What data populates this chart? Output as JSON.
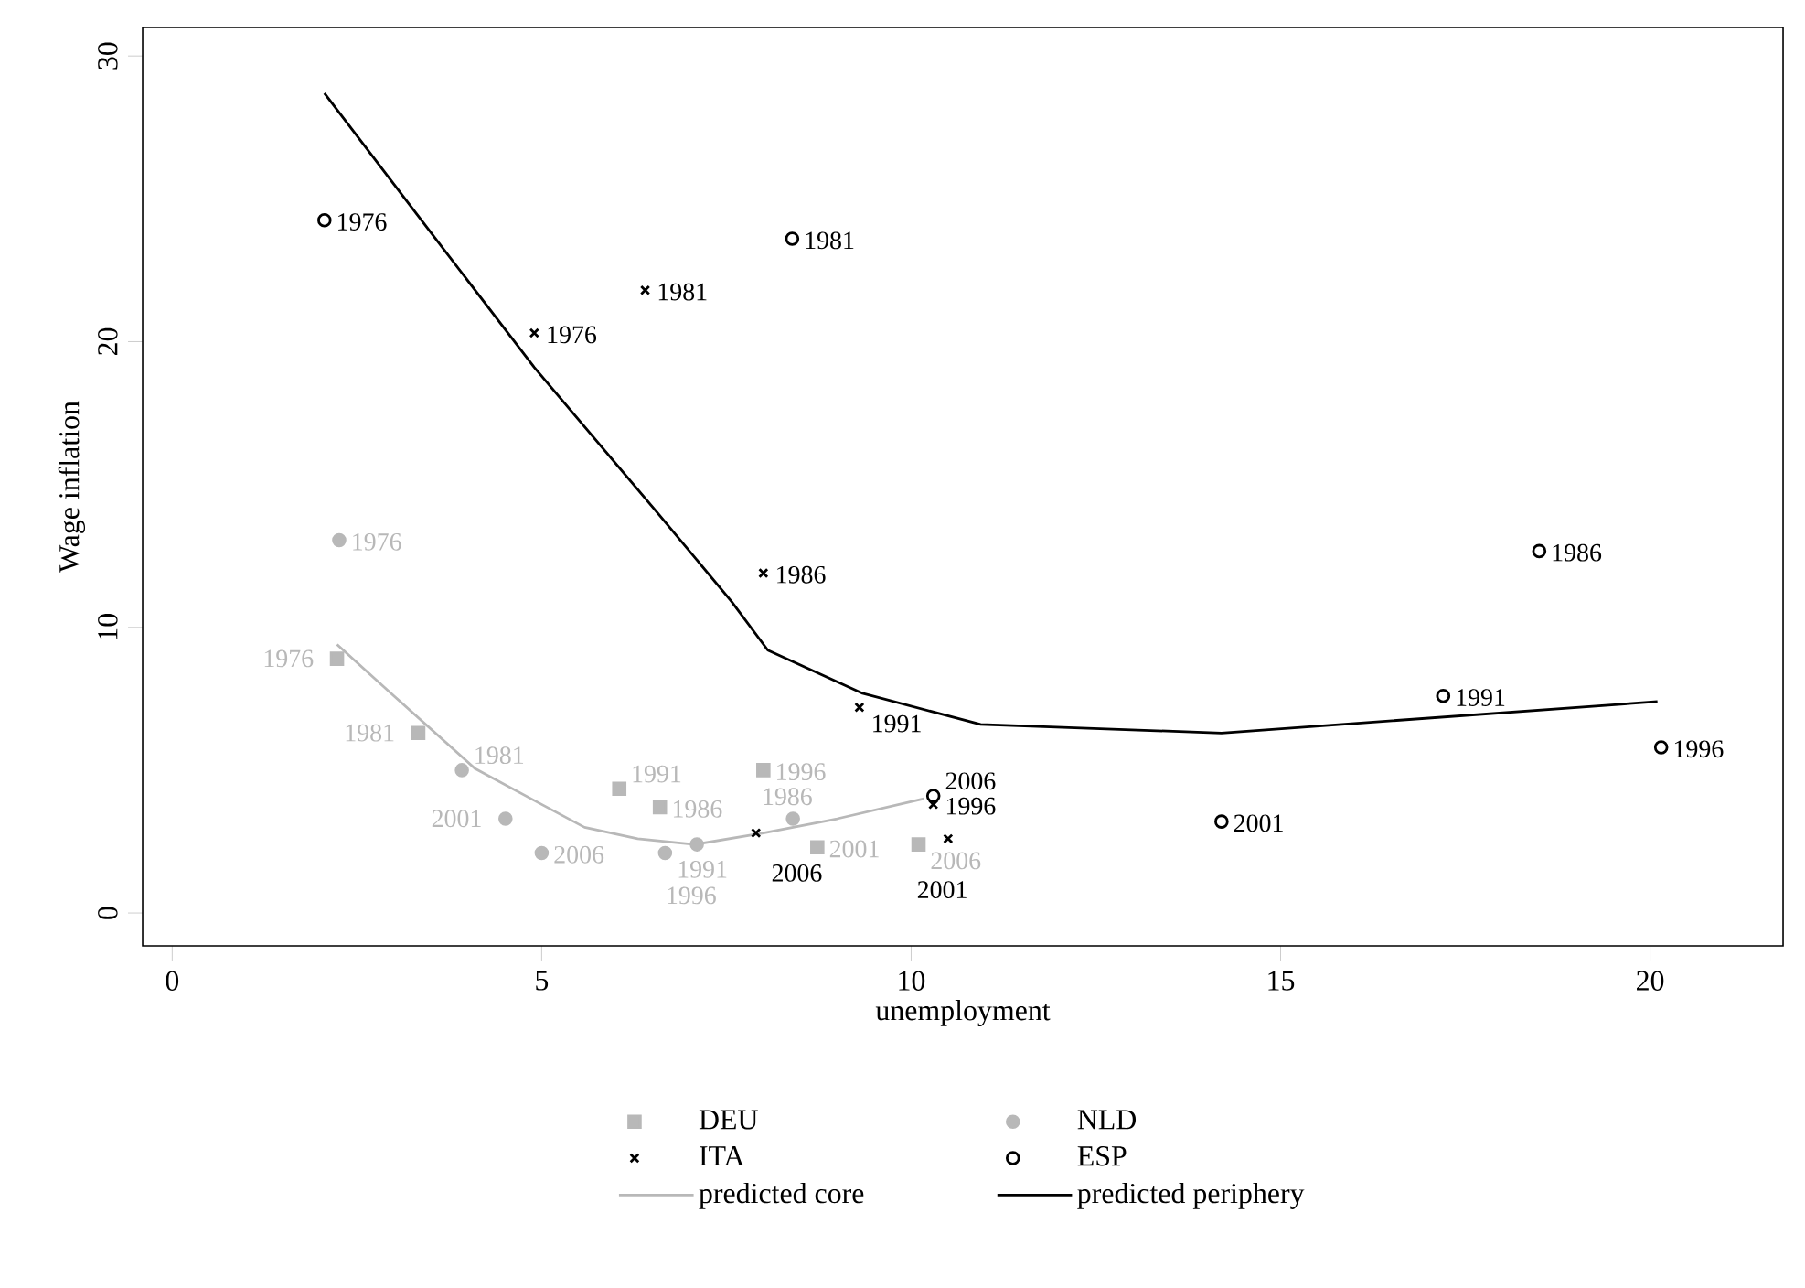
{
  "chart_data": {
    "type": "scatter",
    "xlabel": "unemployment",
    "ylabel": "Wage inflation",
    "xlim": [
      -0.4,
      21.8
    ],
    "ylim": [
      -1.15,
      31
    ],
    "xticks": [
      0,
      5,
      10,
      15,
      20
    ],
    "yticks": [
      0,
      10,
      20,
      30
    ],
    "grid": false,
    "legend": "bottom",
    "series": [
      {
        "name": "DEU",
        "marker": "square",
        "color": "#b8b8b8",
        "x": [
          2.23,
          3.33,
          6.6,
          6.05,
          8.0,
          8.73,
          10.1
        ],
        "values": [
          8.9,
          6.3,
          3.7,
          4.35,
          5.0,
          2.3,
          2.4
        ]
      },
      {
        "name": "NLD",
        "marker": "circle",
        "color": "#b8b8b8",
        "x": [
          2.26,
          3.92,
          8.4,
          6.67,
          7.1,
          4.51,
          5.0
        ],
        "values": [
          13.05,
          5.0,
          3.3,
          2.1,
          2.4,
          3.3,
          2.1
        ]
      },
      {
        "name": "ITA",
        "marker": "cross",
        "color": "#000000",
        "x": [
          4.9,
          6.4,
          8.0,
          9.3,
          10.3,
          10.5,
          7.9
        ],
        "values": [
          20.3,
          21.8,
          11.9,
          7.2,
          3.8,
          2.6,
          2.8
        ]
      },
      {
        "name": "ESP",
        "marker": "circle",
        "color": "#000000",
        "x": [
          2.06,
          8.39,
          18.5,
          17.2,
          20.15,
          14.2,
          10.3
        ],
        "values": [
          24.25,
          23.6,
          12.67,
          7.6,
          5.8,
          3.2,
          4.1
        ]
      },
      {
        "name": "predicted core",
        "type": "line",
        "marker": "none",
        "color": "#b8b8b8",
        "x": [
          2.23,
          3.0,
          4.1,
          5.0,
          5.58,
          6.3,
          7.07,
          8.0,
          9.0,
          10.17
        ],
        "values": [
          9.4,
          7.6,
          5.05,
          3.8,
          3.0,
          2.6,
          2.4,
          2.8,
          3.3,
          4.0
        ]
      },
      {
        "name": "predicted periphery",
        "type": "line",
        "marker": "none",
        "color": "#000000",
        "x": [
          2.06,
          3.18,
          4.9,
          6.57,
          7.57,
          8.06,
          9.33,
          10.94,
          14.2,
          20.1
        ],
        "values": [
          28.7,
          24.9,
          19.1,
          14.0,
          10.9,
          9.2,
          7.7,
          6.6,
          6.3,
          7.4
        ]
      }
    ],
    "annotations": [
      {
        "text": "1976",
        "x": 2.23,
        "y": 8.9
      },
      {
        "text": "1981",
        "x": 3.33,
        "y": 6.3
      },
      {
        "text": "1986",
        "x": 6.6,
        "y": 3.7
      },
      {
        "text": "1991",
        "x": 6.05,
        "y": 4.35
      },
      {
        "text": "1996",
        "x": 8.0,
        "y": 5.0
      },
      {
        "text": "2001",
        "x": 8.73,
        "y": 2.3
      },
      {
        "text": "2006",
        "x": 10.1,
        "y": 2.4
      },
      {
        "text": "1976",
        "x": 2.26,
        "y": 13.05
      },
      {
        "text": "1981",
        "x": 3.92,
        "y": 5.0
      },
      {
        "text": "1986",
        "x": 8.4,
        "y": 3.3
      },
      {
        "text": "1991",
        "x": 6.67,
        "y": 2.1
      },
      {
        "text": "1996",
        "x": 7.1,
        "y": 2.4
      },
      {
        "text": "2001",
        "x": 4.51,
        "y": 3.3
      },
      {
        "text": "2006",
        "x": 5.0,
        "y": 2.1
      },
      {
        "text": "1976",
        "x": 4.9,
        "y": 20.3
      },
      {
        "text": "1981",
        "x": 6.4,
        "y": 21.8
      },
      {
        "text": "1986",
        "x": 8.0,
        "y": 11.9
      },
      {
        "text": "1991",
        "x": 9.3,
        "y": 7.2
      },
      {
        "text": "1996",
        "x": 10.3,
        "y": 3.8
      },
      {
        "text": "2001",
        "x": 10.5,
        "y": 2.6
      },
      {
        "text": "2006",
        "x": 7.9,
        "y": 2.8
      },
      {
        "text": "1976",
        "x": 2.06,
        "y": 24.25
      },
      {
        "text": "1981",
        "x": 8.39,
        "y": 23.6
      },
      {
        "text": "1986",
        "x": 18.5,
        "y": 12.67
      },
      {
        "text": "1991",
        "x": 17.2,
        "y": 7.6
      },
      {
        "text": "1996",
        "x": 20.15,
        "y": 5.8
      },
      {
        "text": "2001",
        "x": 14.2,
        "y": 3.2
      },
      {
        "text": "2006",
        "x": 10.3,
        "y": 4.1
      }
    ]
  }
}
